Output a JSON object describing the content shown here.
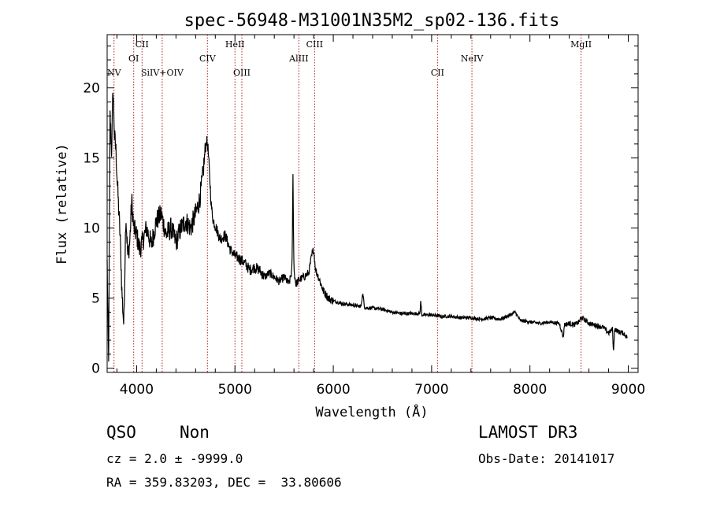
{
  "chart_data": {
    "type": "line",
    "title": "spec-56948-M31001N35M2_sp02-136.fits",
    "xlabel": "Wavelength (Å)",
    "ylabel": "Flux (relative)",
    "xlim": [
      3700,
      9100
    ],
    "ylim": [
      -0.3,
      23.8
    ],
    "xticks": [
      4000,
      5000,
      6000,
      7000,
      8000,
      9000
    ],
    "yticks": [
      0,
      5,
      10,
      15,
      20
    ],
    "grid": false,
    "line_color": "#000000",
    "marker_color": "#b22222",
    "emission_lines": [
      {
        "name": "NV",
        "x": 3770,
        "row": 3
      },
      {
        "name": "OI",
        "x": 3970,
        "row": 2
      },
      {
        "name": "CII",
        "x": 4055,
        "row": 1
      },
      {
        "name": "SiIV+OIV",
        "x": 4260,
        "row": 3
      },
      {
        "name": "CIV",
        "x": 4720,
        "row": 2
      },
      {
        "name": "HeII",
        "x": 5000,
        "row": 1
      },
      {
        "name": "OIII",
        "x": 5070,
        "row": 3
      },
      {
        "name": "AlIII",
        "x": 5650,
        "row": 2
      },
      {
        "name": "CIII",
        "x": 5810,
        "row": 1
      },
      {
        "name": "CII",
        "x": 7060,
        "row": 3
      },
      {
        "name": "NeIV",
        "x": 7410,
        "row": 2
      },
      {
        "name": "MgII",
        "x": 8520,
        "row": 1
      }
    ],
    "spectrum": {
      "x": [
        3700,
        3715,
        3730,
        3745,
        3760,
        3775,
        3790,
        3805,
        3820,
        3835,
        3850,
        3870,
        3890,
        3910,
        3930,
        3950,
        3970,
        4000,
        4030,
        4060,
        4100,
        4150,
        4200,
        4250,
        4300,
        4350,
        4400,
        4450,
        4500,
        4550,
        4600,
        4640,
        4670,
        4690,
        4710,
        4725,
        4740,
        4760,
        4780,
        4810,
        4850,
        4900,
        4950,
        5000,
        5050,
        5100,
        5150,
        5200,
        5250,
        5300,
        5350,
        5400,
        5450,
        5500,
        5550,
        5580,
        5590,
        5600,
        5620,
        5650,
        5700,
        5750,
        5780,
        5800,
        5820,
        5850,
        5900,
        5950,
        6000,
        6100,
        6200,
        6280,
        6300,
        6320,
        6400,
        6500,
        6600,
        6700,
        6800,
        6880,
        6890,
        6900,
        7000,
        7100,
        7200,
        7300,
        7400,
        7500,
        7600,
        7700,
        7800,
        7850,
        7900,
        8000,
        8100,
        8200,
        8300,
        8340,
        8350,
        8400,
        8450,
        8500,
        8520,
        8550,
        8600,
        8700,
        8750,
        8800,
        8840,
        8850,
        8860,
        8900,
        8950,
        8990
      ],
      "y": [
        7.5,
        0.2,
        18.0,
        15.5,
        20.0,
        16.5,
        15.5,
        13.0,
        11.0,
        9.0,
        5.5,
        3.0,
        11.0,
        8.0,
        9.0,
        12.0,
        10.0,
        9.5,
        8.5,
        9.0,
        10.0,
        8.8,
        10.5,
        11.0,
        9.5,
        10.0,
        9.0,
        10.0,
        10.5,
        10.0,
        11.0,
        12.0,
        13.5,
        15.0,
        16.3,
        15.8,
        14.0,
        11.5,
        10.5,
        10.0,
        9.2,
        9.5,
        8.5,
        8.0,
        7.8,
        7.5,
        7.0,
        7.2,
        7.0,
        6.5,
        6.8,
        6.5,
        6.2,
        6.5,
        6.0,
        7.0,
        13.7,
        7.0,
        6.0,
        6.3,
        6.5,
        6.8,
        8.0,
        8.5,
        7.0,
        6.5,
        5.5,
        5.0,
        4.8,
        4.6,
        4.5,
        4.4,
        5.3,
        4.3,
        4.3,
        4.2,
        4.0,
        3.9,
        3.9,
        3.9,
        4.8,
        3.8,
        3.8,
        3.7,
        3.7,
        3.6,
        3.6,
        3.5,
        3.6,
        3.5,
        3.8,
        4.0,
        3.4,
        3.3,
        3.2,
        3.3,
        3.2,
        2.2,
        3.1,
        3.2,
        3.1,
        3.3,
        3.6,
        3.5,
        3.2,
        3.0,
        2.9,
        2.5,
        2.8,
        1.0,
        2.8,
        2.6,
        2.5,
        2.2
      ]
    }
  },
  "info": {
    "object_class": "QSO",
    "subclass": "Non",
    "redshift": "cz = 2.0 ± -9999.0",
    "coordinates": "RA = 359.83203, DEC =  33.80606",
    "survey": "LAMOST DR3",
    "obs_date": "Obs-Date: 20141017"
  }
}
